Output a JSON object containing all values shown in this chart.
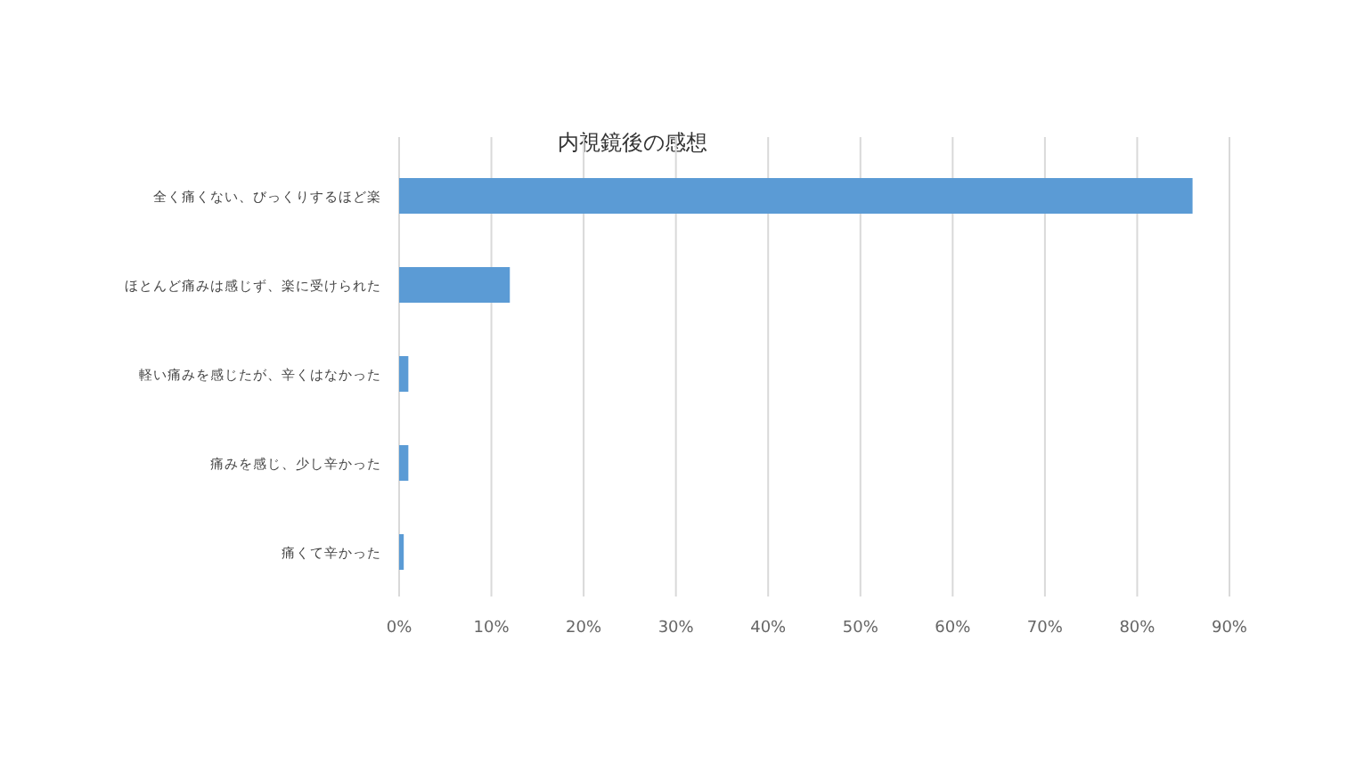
{
  "chart_data": {
    "type": "bar",
    "orientation": "horizontal",
    "title": "内視鏡後の感想",
    "categories": [
      "全く痛くない、びっくりするほど楽",
      "ほとんど痛みは感じず、楽に受けられた",
      "軽い痛みを感じたが、辛くはなかった",
      "痛みを感じ、少し辛かった",
      "痛くて辛かった"
    ],
    "values": [
      86,
      12,
      1,
      1,
      0.5
    ],
    "color": "#5b9bd5",
    "xlim": [
      0,
      90
    ],
    "xticks": [
      {
        "value": 0,
        "label": "0%"
      },
      {
        "value": 10,
        "label": "10%"
      },
      {
        "value": 20,
        "label": "20%"
      },
      {
        "value": 30,
        "label": "30%"
      },
      {
        "value": 40,
        "label": "40%"
      },
      {
        "value": 50,
        "label": "50%"
      },
      {
        "value": 60,
        "label": "60%"
      },
      {
        "value": 70,
        "label": "70%"
      },
      {
        "value": 80,
        "label": "80%"
      },
      {
        "value": 90,
        "label": "90%"
      }
    ],
    "grid": "x"
  }
}
